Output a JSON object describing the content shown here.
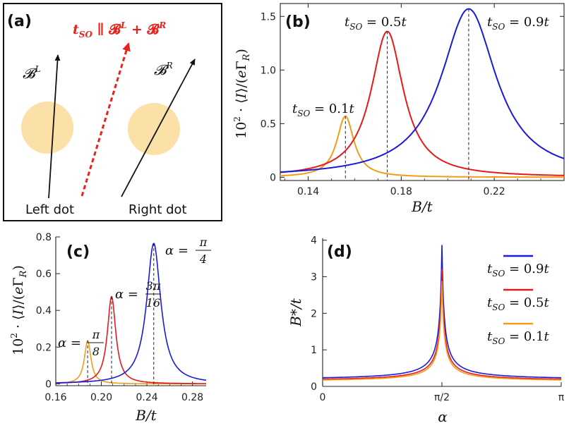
{
  "colors": {
    "blue": "#1a1adb",
    "red": "#e41a1c",
    "orange": "#f39c1a",
    "dot": "#fbe0a8",
    "arrow_red": "#e8231e"
  },
  "panel_a": {
    "label": "(a)",
    "title": "t_SO ∥ 𝓑^L + 𝓑^R",
    "title_parts": {
      "t": "t",
      "sub": "SO",
      "rest": " ∥ 𝓑",
      "supL": "L",
      "plus": " + 𝓑",
      "supR": "R"
    },
    "left_label": "Left dot",
    "right_label": "Right dot",
    "BL": "𝓑",
    "BL_sup": "L",
    "BR": "𝓑",
    "BR_sup": "R"
  },
  "chart_data": [
    {
      "panel": "(b)",
      "type": "line",
      "xlabel": "B/t",
      "ylabel": "10² · ⟨I⟩/(eΓ_R)",
      "xlim": [
        0.128,
        0.25
      ],
      "ylim": [
        -0.03,
        1.62
      ],
      "xticks": [
        0.14,
        0.18,
        0.22
      ],
      "xtick_labels": [
        "0.14",
        "0.18",
        "0.22"
      ],
      "yticks": [
        0,
        0.5,
        1.0,
        1.5
      ],
      "ytick_labels": [
        "0",
        "0.5",
        "1.0",
        "1.5"
      ],
      "series": [
        {
          "name": "t_SO = 0.1t",
          "color": "orange",
          "peak_x": 0.156,
          "peak_y": 0.57,
          "width": 0.0045,
          "base": 0.0,
          "label": "t_SO = 0.1t"
        },
        {
          "name": "t_SO = 0.5t",
          "color": "red",
          "peak_x": 0.174,
          "peak_y": 1.36,
          "width": 0.0085,
          "base": 0.0,
          "label": "t_SO = 0.5t"
        },
        {
          "name": "t_SO = 0.9t",
          "color": "blue",
          "peak_x": 0.209,
          "peak_y": 1.57,
          "width": 0.0145,
          "base": 0.0,
          "label": "t_SO = 0.9t"
        }
      ]
    },
    {
      "panel": "(c)",
      "type": "line",
      "xlabel": "B/t",
      "ylabel": "10² · ⟨I⟩/(eΓ_R)",
      "xlim": [
        0.16,
        0.292
      ],
      "ylim": [
        -0.01,
        0.8
      ],
      "xticks": [
        0.16,
        0.2,
        0.24,
        0.28
      ],
      "xtick_labels": [
        "0.16",
        "0.20",
        "0.24",
        "0.28"
      ],
      "yticks": [
        0,
        0.2,
        0.4,
        0.6,
        0.8
      ],
      "ytick_labels": [
        "0",
        "0.2",
        "0.4",
        "0.6",
        "0.8"
      ],
      "series": [
        {
          "name": "α = π/8",
          "color": "orange",
          "peak_x": 0.188,
          "peak_y": 0.235,
          "width": 0.0035,
          "label_top": "π",
          "label_bot": "8"
        },
        {
          "name": "α = 3π/16",
          "color": "red",
          "peak_x": 0.209,
          "peak_y": 0.475,
          "width": 0.0045,
          "label_top": "3π",
          "label_bot": "16"
        },
        {
          "name": "α = π/4",
          "color": "blue",
          "peak_x": 0.246,
          "peak_y": 0.765,
          "width": 0.0075,
          "label_top": "π",
          "label_bot": "4"
        }
      ]
    },
    {
      "panel": "(d)",
      "type": "line",
      "xlabel": "α",
      "ylabel": "B*/t",
      "xlim": [
        0,
        3.1416
      ],
      "ylim": [
        0,
        4.05
      ],
      "xticks": [
        0,
        1.5708,
        3.1416
      ],
      "xtick_labels": [
        "0",
        "π/2",
        "π"
      ],
      "yticks": [
        0,
        1,
        2,
        3,
        4
      ],
      "ytick_labels": [
        "0",
        "1",
        "2",
        "3",
        "4"
      ],
      "legend_position": "right",
      "series": [
        {
          "name": "t_SO = 0.9t",
          "color": "blue",
          "min": 0.19,
          "peak": 3.87
        },
        {
          "name": "t_SO = 0.5t",
          "color": "red",
          "min": 0.16,
          "peak": 3.22
        },
        {
          "name": "t_SO = 0.1t",
          "color": "orange",
          "min": 0.14,
          "peak": 2.88
        }
      ]
    }
  ],
  "alpha_prefix": "α =",
  "legend_names": [
    "t_SO = 0.9t",
    "t_SO = 0.5t",
    "t_SO = 0.1t"
  ]
}
